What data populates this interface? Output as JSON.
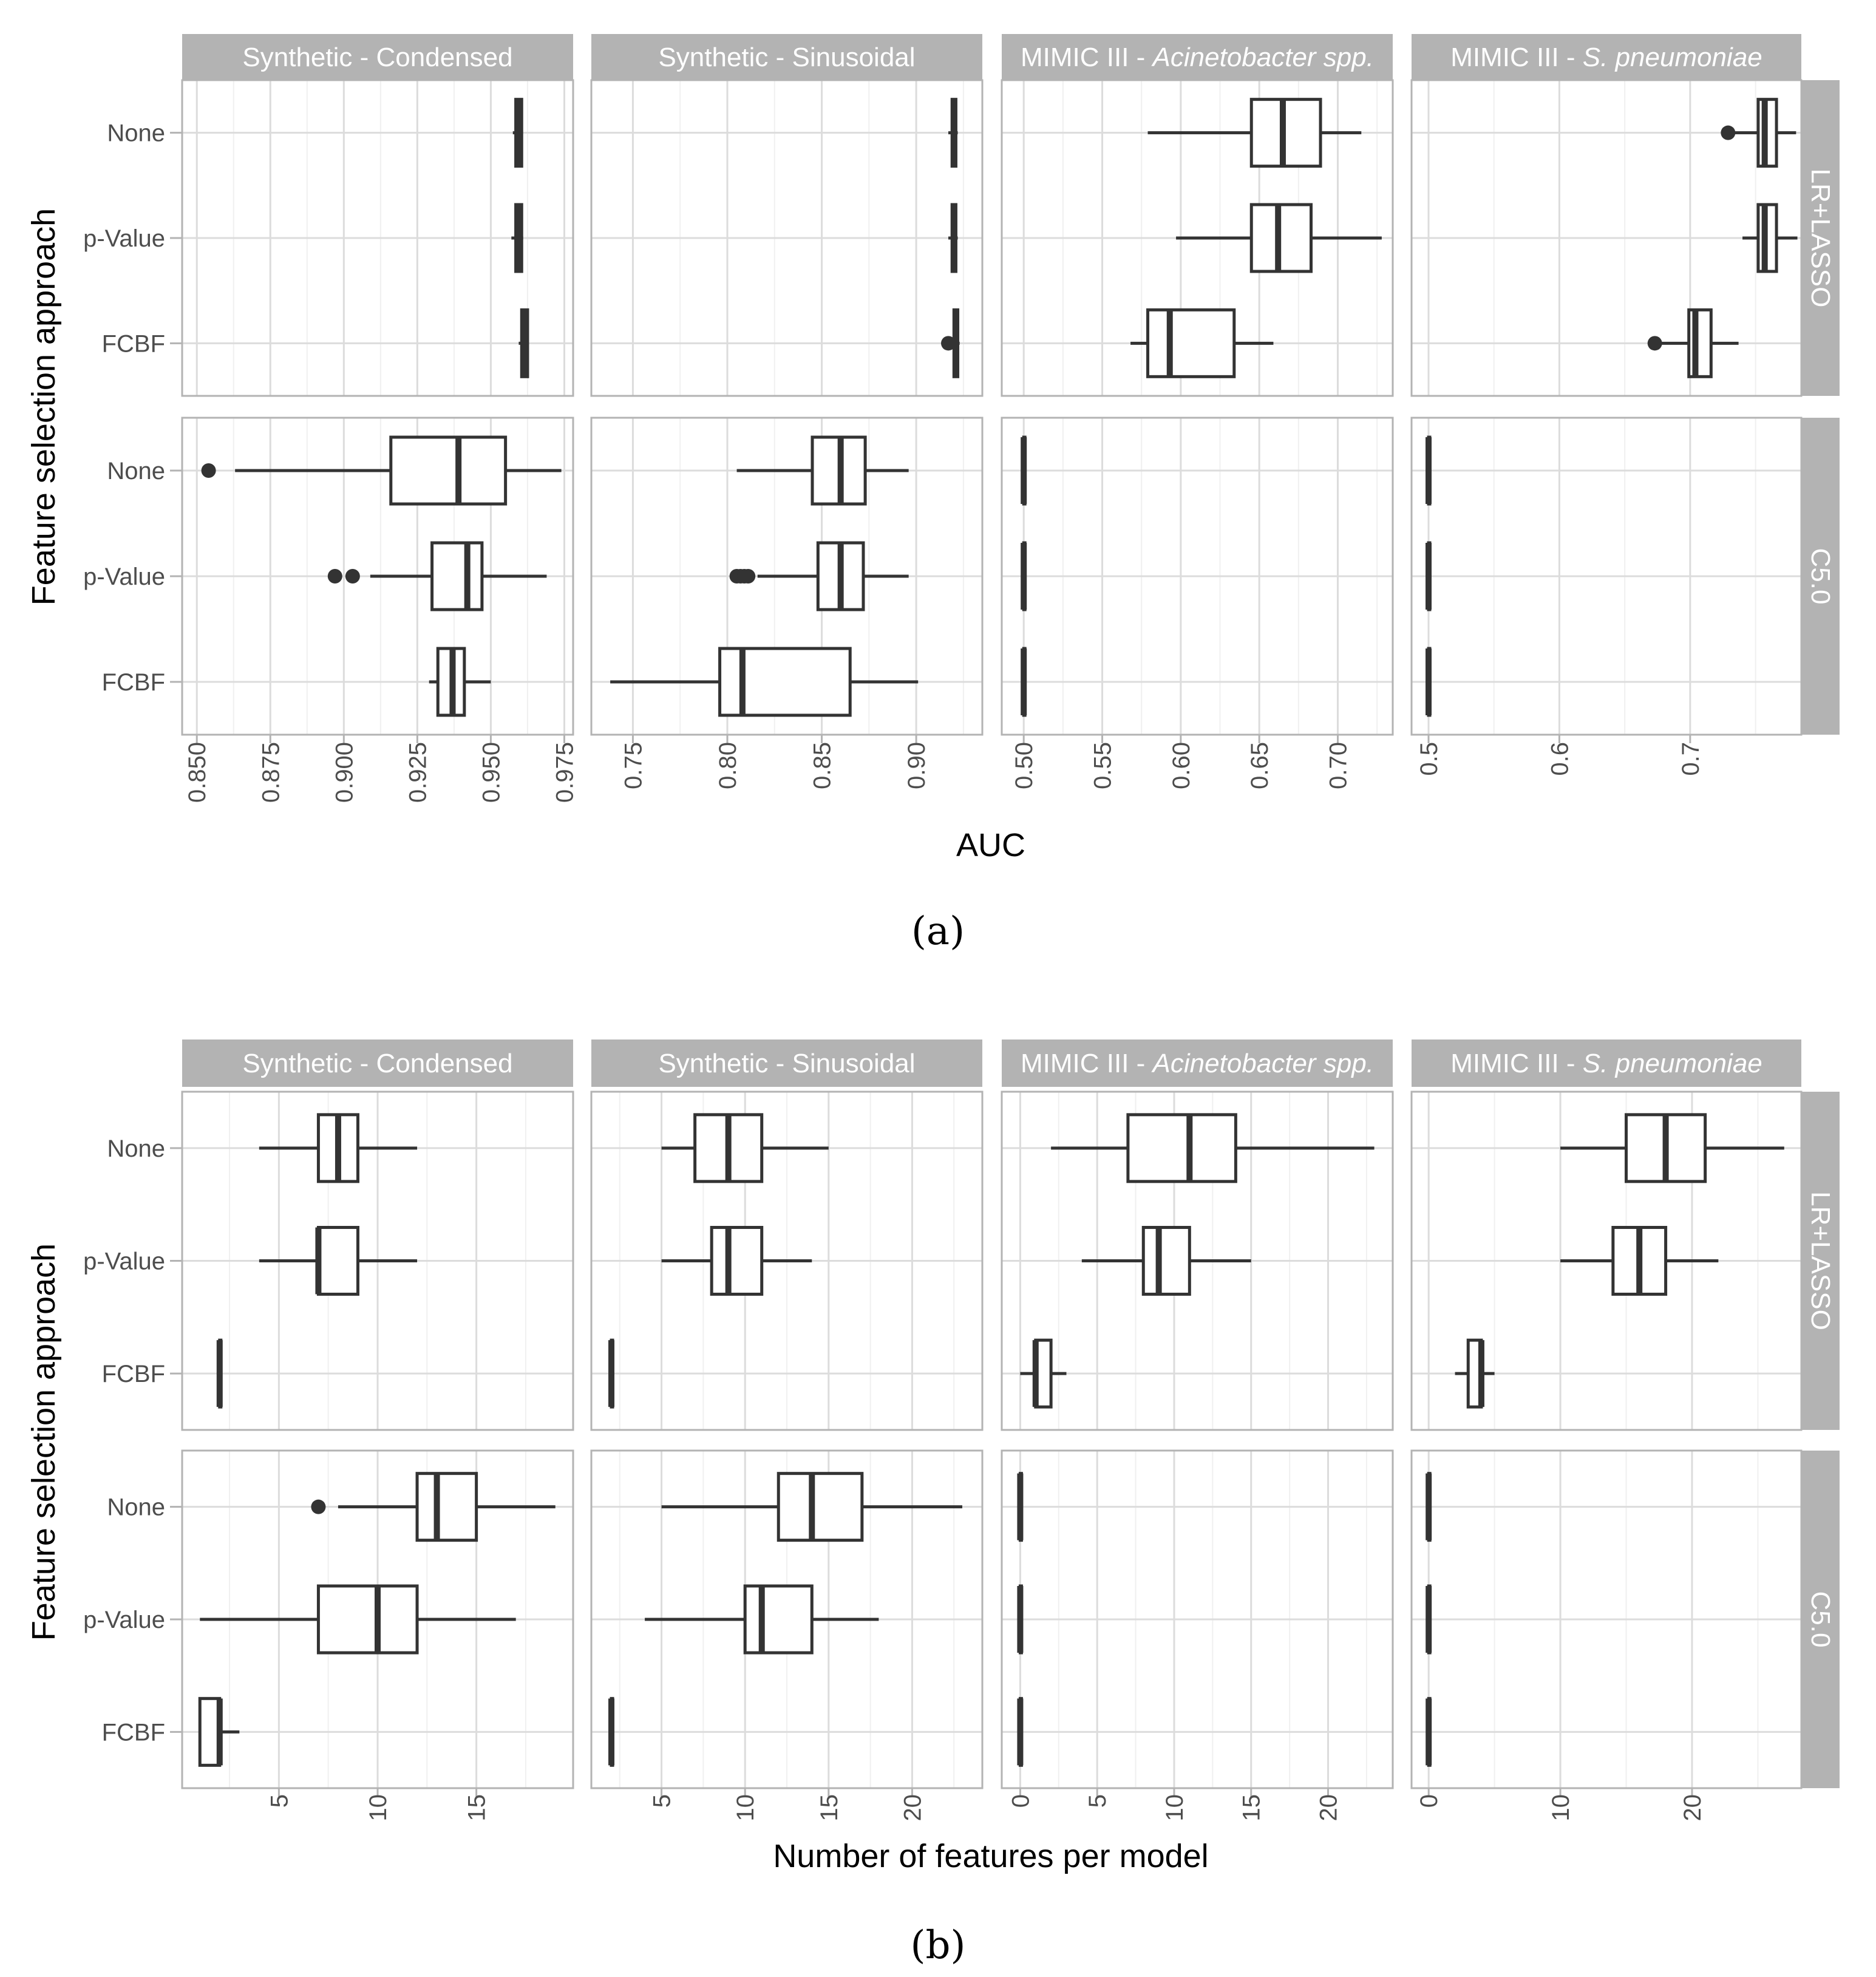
{
  "figure": {
    "sub_labels": [
      "(a)",
      "(b)"
    ]
  },
  "chart_data": [
    {
      "type": "box",
      "sub_label": "(a)",
      "xlabel": "AUC",
      "ylabel": "Feature selection approach",
      "row_labels": [
        "LR+LASSO",
        "C5.0"
      ],
      "categories": [
        "None",
        "p-Value",
        "FCBF"
      ],
      "panels": [
        {
          "title": "Synthetic - Condensed",
          "title_parts": [
            {
              "t": "Synthetic - Condensed",
              "i": false
            }
          ],
          "xlim": [
            0.845,
            0.978
          ],
          "ticks": [
            0.85,
            0.875,
            0.9,
            0.925,
            0.95,
            0.975
          ],
          "tick_labels": [
            "0.850",
            "0.875",
            "0.900",
            "0.925",
            "0.950",
            "0.975"
          ],
          "rows": [
            [
              {
                "q1": 0.9585,
                "med": 0.9595,
                "q3": 0.9605,
                "wlo": 0.9575,
                "whi": 0.9605,
                "out": []
              },
              {
                "q1": 0.9585,
                "med": 0.9595,
                "q3": 0.9605,
                "wlo": 0.957,
                "whi": 0.961,
                "out": []
              },
              {
                "q1": 0.9605,
                "med": 0.9615,
                "q3": 0.9625,
                "wlo": 0.9595,
                "whi": 0.9625,
                "out": []
              }
            ],
            [
              {
                "q1": 0.916,
                "med": 0.939,
                "q3": 0.955,
                "wlo": 0.863,
                "whi": 0.974,
                "out": [
                  0.854
                ]
              },
              {
                "q1": 0.93,
                "med": 0.942,
                "q3": 0.947,
                "wlo": 0.909,
                "whi": 0.969,
                "out": [
                  0.897,
                  0.903
                ]
              },
              {
                "q1": 0.932,
                "med": 0.937,
                "q3": 0.941,
                "wlo": 0.929,
                "whi": 0.95,
                "out": []
              }
            ]
          ]
        },
        {
          "title": "Synthetic - Sinusoidal",
          "title_parts": [
            {
              "t": "Synthetic - Sinusoidal",
              "i": false
            }
          ],
          "xlim": [
            0.728,
            0.935
          ],
          "ticks": [
            0.75,
            0.8,
            0.85,
            0.9
          ],
          "tick_labels": [
            "0.75",
            "0.80",
            "0.85",
            "0.90"
          ],
          "rows": [
            [
              {
                "q1": 0.919,
                "med": 0.92,
                "q3": 0.921,
                "wlo": 0.917,
                "whi": 0.922,
                "out": []
              },
              {
                "q1": 0.919,
                "med": 0.92,
                "q3": 0.921,
                "wlo": 0.917,
                "whi": 0.922,
                "out": []
              },
              {
                "q1": 0.92,
                "med": 0.921,
                "q3": 0.922,
                "wlo": 0.919,
                "whi": 0.923,
                "out": [
                  0.917
                ]
              }
            ],
            [
              {
                "q1": 0.845,
                "med": 0.86,
                "q3": 0.873,
                "wlo": 0.805,
                "whi": 0.896,
                "out": []
              },
              {
                "q1": 0.848,
                "med": 0.86,
                "q3": 0.872,
                "wlo": 0.816,
                "whi": 0.896,
                "out": [
                  0.805,
                  0.807,
                  0.809,
                  0.811
                ]
              },
              {
                "q1": 0.796,
                "med": 0.808,
                "q3": 0.865,
                "wlo": 0.738,
                "whi": 0.901,
                "out": []
              }
            ]
          ]
        },
        {
          "title": "MIMIC III - Acinetobacter spp.",
          "title_parts": [
            {
              "t": "MIMIC III - ",
              "i": false
            },
            {
              "t": "Acinetobacter spp.",
              "i": true
            }
          ],
          "xlim": [
            0.486,
            0.735
          ],
          "ticks": [
            0.5,
            0.55,
            0.6,
            0.65,
            0.7
          ],
          "tick_labels": [
            "0.50",
            "0.55",
            "0.60",
            "0.65",
            "0.70"
          ],
          "rows": [
            [
              {
                "q1": 0.645,
                "med": 0.665,
                "q3": 0.689,
                "wlo": 0.579,
                "whi": 0.715,
                "out": []
              },
              {
                "q1": 0.645,
                "med": 0.662,
                "q3": 0.683,
                "wlo": 0.597,
                "whi": 0.728,
                "out": []
              },
              {
                "q1": 0.579,
                "med": 0.593,
                "q3": 0.634,
                "wlo": 0.568,
                "whi": 0.659,
                "out": []
              }
            ],
            [
              {
                "q1": 0.5,
                "med": 0.5,
                "q3": 0.5,
                "wlo": 0.5,
                "whi": 0.5,
                "out": []
              },
              {
                "q1": 0.5,
                "med": 0.5,
                "q3": 0.5,
                "wlo": 0.5,
                "whi": 0.5,
                "out": []
              },
              {
                "q1": 0.5,
                "med": 0.5,
                "q3": 0.5,
                "wlo": 0.5,
                "whi": 0.5,
                "out": []
              }
            ]
          ]
        },
        {
          "title": "MIMIC III - S. pneumoniae",
          "title_parts": [
            {
              "t": "MIMIC III - ",
              "i": false
            },
            {
              "t": "S. pneumoniae",
              "i": true
            }
          ],
          "xlim": [
            0.487,
            0.785
          ],
          "ticks": [
            0.5,
            0.6,
            0.7
          ],
          "tick_labels": [
            "0.5",
            "0.6",
            "0.7"
          ],
          "rows": [
            [
              {
                "q1": 0.752,
                "med": 0.757,
                "q3": 0.766,
                "wlo": 0.733,
                "whi": 0.781,
                "out": [
                  0.729
                ]
              },
              {
                "q1": 0.752,
                "med": 0.757,
                "q3": 0.766,
                "wlo": 0.74,
                "whi": 0.782,
                "out": []
              },
              {
                "q1": 0.699,
                "med": 0.704,
                "q3": 0.716,
                "wlo": 0.675,
                "whi": 0.737,
                "out": [
                  0.673
                ]
              }
            ],
            [
              {
                "q1": 0.5,
                "med": 0.5,
                "q3": 0.5,
                "wlo": 0.5,
                "whi": 0.5,
                "out": []
              },
              {
                "q1": 0.5,
                "med": 0.5,
                "q3": 0.5,
                "wlo": 0.5,
                "whi": 0.5,
                "out": []
              },
              {
                "q1": 0.5,
                "med": 0.5,
                "q3": 0.5,
                "wlo": 0.5,
                "whi": 0.5,
                "out": []
              }
            ]
          ]
        }
      ]
    },
    {
      "type": "box",
      "sub_label": "(b)",
      "xlabel": "Number of features per model",
      "ylabel": "Feature selection approach",
      "row_labels": [
        "LR+LASSO",
        "C5.0"
      ],
      "categories": [
        "None",
        "p-Value",
        "FCBF"
      ],
      "panels": [
        {
          "title": "Synthetic - Condensed",
          "title_parts": [
            {
              "t": "Synthetic - Condensed",
              "i": false
            }
          ],
          "xlim": [
            0.1,
            19.9
          ],
          "ticks": [
            5,
            10,
            15
          ],
          "tick_labels": [
            "5",
            "10",
            "15"
          ],
          "rows": [
            [
              {
                "q1": 7,
                "med": 8,
                "q3": 9,
                "wlo": 4,
                "whi": 12,
                "out": []
              },
              {
                "q1": 7,
                "med": 7,
                "q3": 9,
                "wlo": 4,
                "whi": 12,
                "out": []
              },
              {
                "q1": 2,
                "med": 2,
                "q3": 2,
                "wlo": 2,
                "whi": 2,
                "out": []
              }
            ],
            [
              {
                "q1": 12,
                "med": 13,
                "q3": 15,
                "wlo": 8,
                "whi": 19,
                "out": [
                  7
                ]
              },
              {
                "q1": 7,
                "med": 10,
                "q3": 12,
                "wlo": 1,
                "whi": 17,
                "out": []
              },
              {
                "q1": 1,
                "med": 2,
                "q3": 2,
                "wlo": 1,
                "whi": 3,
                "out": []
              }
            ]
          ]
        },
        {
          "title": "Synthetic - Sinusoidal",
          "title_parts": [
            {
              "t": "Synthetic - Sinusoidal",
              "i": false
            }
          ],
          "xlim": [
            0.8,
            24.2
          ],
          "ticks": [
            5,
            10,
            15,
            20
          ],
          "tick_labels": [
            "5",
            "10",
            "15",
            "20"
          ],
          "rows": [
            [
              {
                "q1": 7,
                "med": 9,
                "q3": 11,
                "wlo": 5,
                "whi": 15,
                "out": []
              },
              {
                "q1": 8,
                "med": 9,
                "q3": 11,
                "wlo": 5,
                "whi": 14,
                "out": []
              },
              {
                "q1": 2,
                "med": 2,
                "q3": 2,
                "wlo": 2,
                "whi": 2,
                "out": []
              }
            ],
            [
              {
                "q1": 12,
                "med": 14,
                "q3": 17,
                "wlo": 5,
                "whi": 23,
                "out": []
              },
              {
                "q1": 10,
                "med": 11,
                "q3": 14,
                "wlo": 4,
                "whi": 18,
                "out": []
              },
              {
                "q1": 2,
                "med": 2,
                "q3": 2,
                "wlo": 2,
                "whi": 2,
                "out": []
              }
            ]
          ]
        },
        {
          "title": "MIMIC III - Acinetobacter spp.",
          "title_parts": [
            {
              "t": "MIMIC III - ",
              "i": false
            },
            {
              "t": "Acinetobacter spp.",
              "i": true
            }
          ],
          "xlim": [
            -1.2,
            24.2
          ],
          "ticks": [
            0,
            5,
            10,
            15,
            20
          ],
          "tick_labels": [
            "0",
            "5",
            "10",
            "15",
            "20"
          ],
          "rows": [
            [
              {
                "q1": 7,
                "med": 11,
                "q3": 14,
                "wlo": 2,
                "whi": 23,
                "out": []
              },
              {
                "q1": 8,
                "med": 9,
                "q3": 11,
                "wlo": 4,
                "whi": 15,
                "out": []
              },
              {
                "q1": 1,
                "med": 1,
                "q3": 2,
                "wlo": 0,
                "whi": 3,
                "out": []
              }
            ],
            [
              {
                "q1": 0,
                "med": 0,
                "q3": 0,
                "wlo": 0,
                "whi": 0,
                "out": []
              },
              {
                "q1": 0,
                "med": 0,
                "q3": 0,
                "wlo": 0,
                "whi": 0,
                "out": []
              },
              {
                "q1": 0,
                "med": 0,
                "q3": 0,
                "wlo": 0,
                "whi": 0,
                "out": []
              }
            ]
          ]
        },
        {
          "title": "MIMIC III - S. pneumoniae",
          "title_parts": [
            {
              "t": "MIMIC III - ",
              "i": false
            },
            {
              "t": "S. pneumoniae",
              "i": true
            }
          ],
          "xlim": [
            -1.3,
            28.3
          ],
          "ticks": [
            0,
            10,
            20
          ],
          "tick_labels": [
            "0",
            "10",
            "20"
          ],
          "rows": [
            [
              {
                "q1": 15,
                "med": 18,
                "q3": 21,
                "wlo": 10,
                "whi": 27,
                "out": []
              },
              {
                "q1": 14,
                "med": 16,
                "q3": 18,
                "wlo": 10,
                "whi": 22,
                "out": []
              },
              {
                "q1": 3,
                "med": 4,
                "q3": 4,
                "wlo": 2,
                "whi": 5,
                "out": []
              }
            ],
            [
              {
                "q1": 0,
                "med": 0,
                "q3": 0,
                "wlo": 0,
                "whi": 0,
                "out": []
              },
              {
                "q1": 0,
                "med": 0,
                "q3": 0,
                "wlo": 0,
                "whi": 0,
                "out": []
              },
              {
                "q1": 0,
                "med": 0,
                "q3": 0,
                "wlo": 0,
                "whi": 0,
                "out": []
              }
            ]
          ]
        }
      ]
    }
  ]
}
